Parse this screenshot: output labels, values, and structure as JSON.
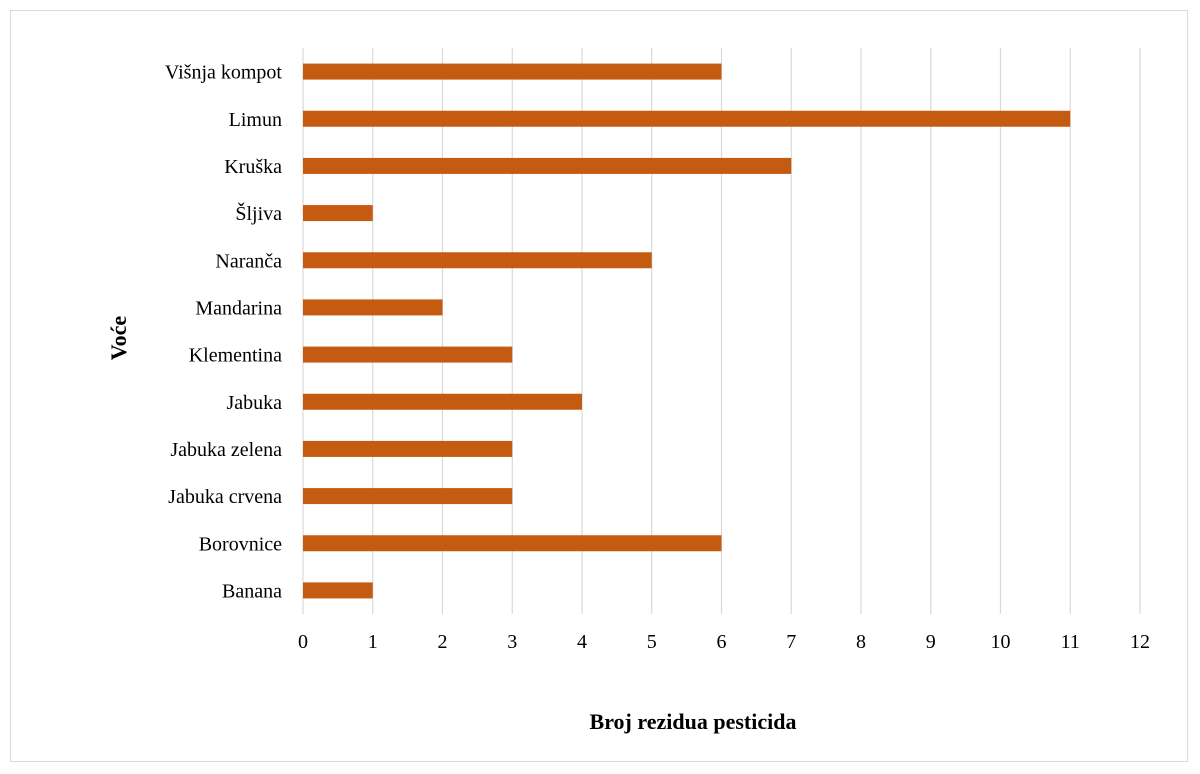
{
  "chart_data": {
    "type": "bar",
    "orientation": "horizontal",
    "categories": [
      "Višnja kompot",
      "Limun",
      "Kruška",
      "Šljiva",
      "Naranča",
      "Mandarina",
      "Klementina",
      "Jabuka",
      "Jabuka zelena",
      "Jabuka crvena",
      "Borovnice",
      "Banana"
    ],
    "values": [
      6,
      11,
      7,
      1,
      5,
      2,
      3,
      4,
      3,
      3,
      6,
      1
    ],
    "xlabel": "Broj rezidua pesticida",
    "ylabel": "Voće",
    "xlim": [
      0,
      12
    ],
    "xticks": [
      0,
      1,
      2,
      3,
      4,
      5,
      6,
      7,
      8,
      9,
      10,
      11,
      12
    ],
    "grid": "vertical",
    "legend": "none",
    "colors": {
      "bar": "#c55a11",
      "grid": "#d9d9d9",
      "border": "#d9d9d9"
    }
  }
}
